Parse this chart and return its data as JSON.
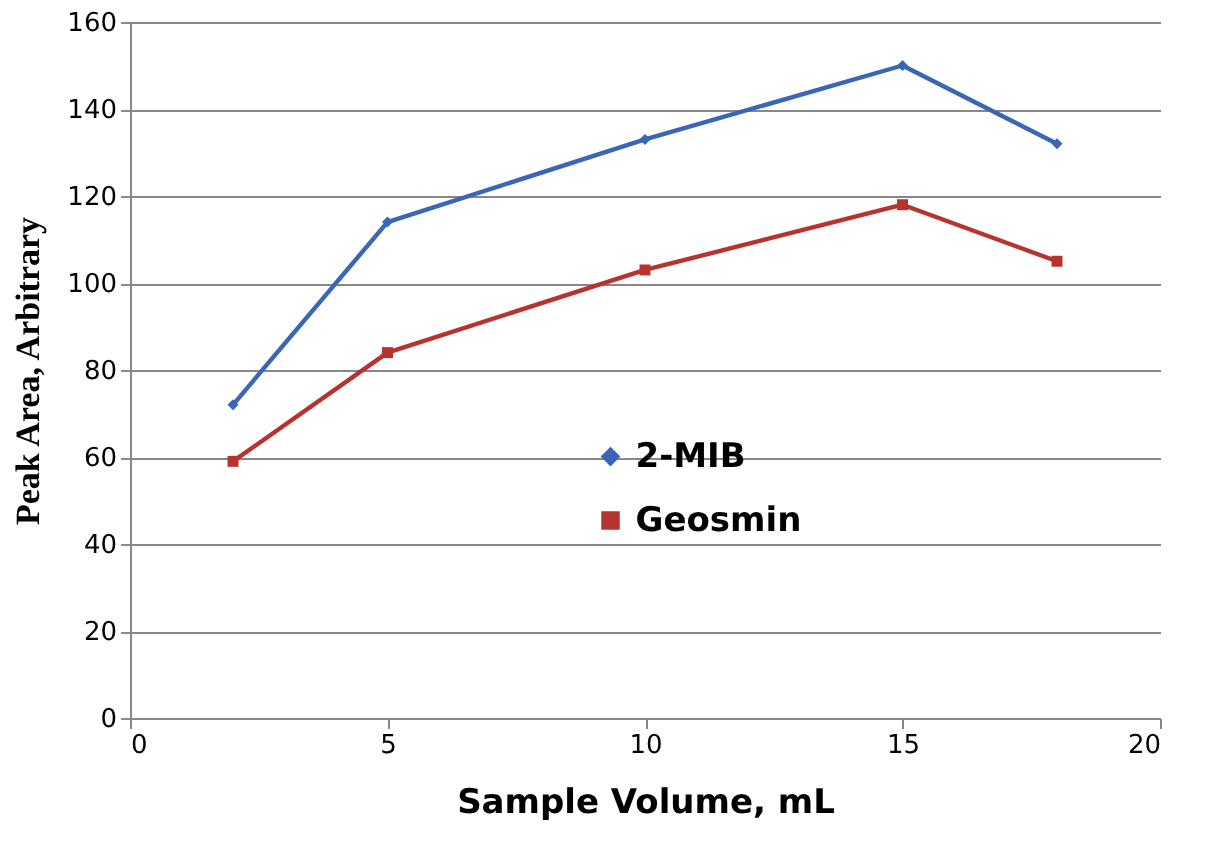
{
  "chart_data": {
    "type": "line",
    "xlabel": "Sample Volume, mL",
    "ylabel": "Peak Area, Arbitrary",
    "x": [
      2,
      5,
      10,
      15,
      18
    ],
    "series": [
      {
        "name": "2-MIB",
        "color": "#3a66b5",
        "marker": "diamond",
        "values": [
          72,
          114,
          133,
          150,
          132
        ]
      },
      {
        "name": "Geosmin",
        "color": "#b83330",
        "marker": "square",
        "values": [
          59,
          84,
          103,
          118,
          105
        ]
      }
    ],
    "xlim": [
      0,
      20
    ],
    "xticks": [
      0,
      5,
      10,
      15,
      20
    ],
    "ylim": [
      0,
      160
    ],
    "yticks": [
      0,
      20,
      40,
      60,
      80,
      100,
      120,
      140,
      160
    ],
    "grid": "y",
    "legend": "center",
    "line_style": "solid"
  }
}
